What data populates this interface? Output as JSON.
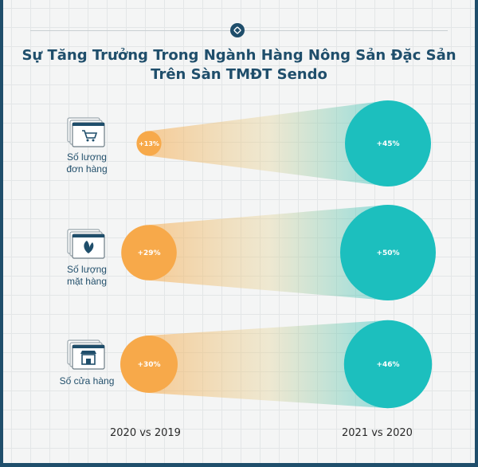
{
  "title": {
    "line1": "Sự Tăng Trưởng Trong Ngành Hàng Nông Sản Đặc Sản",
    "line2": "Trên Sàn TMĐT Sendo"
  },
  "colors": {
    "frame": "#1f4e6b",
    "orange": "#f7a94a",
    "teal": "#1cbfbe",
    "title": "#1f4e6b"
  },
  "chart_data": {
    "type": "bubble",
    "title": "Sự Tăng Trưởng Trong Ngành Hàng Nông Sản Đặc Sản Trên Sàn TMĐT Sendo",
    "categories": [
      "Số lượng đơn hàng",
      "Số lượng mặt hàng",
      "Số cửa hàng"
    ],
    "x": [
      "2020 vs 2019",
      "2021 vs 2020"
    ],
    "series": [
      {
        "name": "2020 vs 2019",
        "values": [
          13,
          29,
          30
        ],
        "labels": [
          "+13%",
          "+29%",
          "+30%"
        ],
        "color": "#f7a94a"
      },
      {
        "name": "2021 vs 2020",
        "values": [
          45,
          50,
          46
        ],
        "labels": [
          "+45%",
          "+50%",
          "+46%"
        ],
        "color": "#1cbfbe"
      }
    ],
    "unit": "%"
  },
  "rows": [
    {
      "label_line1": "Số lượng",
      "label_line2": "đơn hàng",
      "icon": "shopping-cart-icon"
    },
    {
      "label_line1": "Số lượng",
      "label_line2": "mặt hàng",
      "icon": "leaf-icon"
    },
    {
      "label_line1": "Số cửa hàng",
      "label_line2": "",
      "icon": "storefront-icon"
    }
  ],
  "axis": {
    "left": "2020 vs 2019",
    "right": "2021 vs 2020"
  }
}
